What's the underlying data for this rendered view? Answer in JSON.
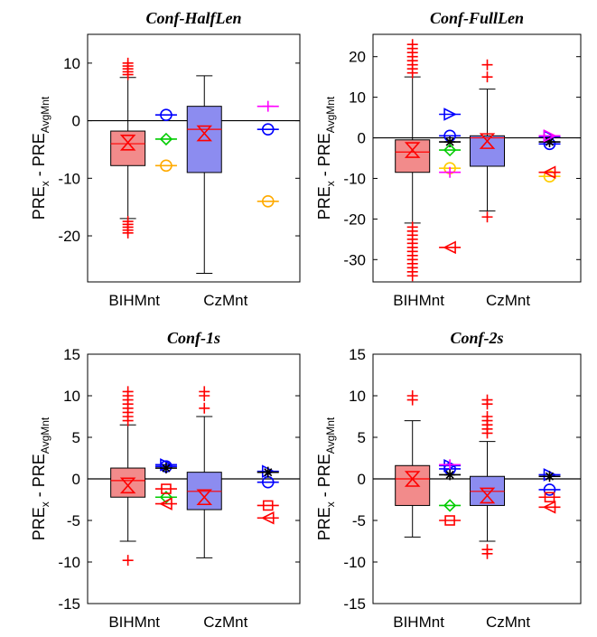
{
  "chart_data": [
    {
      "type": "box",
      "title": "Conf-HalfLen",
      "ylabel": [
        "PRE",
        "x",
        " - PRE",
        "AvgMnt"
      ],
      "categories": [
        "BIHMnt",
        "CzMnt"
      ],
      "ylim": [
        -28,
        15
      ],
      "yticks": [
        -20,
        -10,
        0,
        10
      ],
      "refline": 0,
      "box_colors": [
        "#f28b8b",
        "#8c8cf0"
      ],
      "boxes": [
        {
          "q1": -7.8,
          "median": -4,
          "q3": -1.8,
          "whisker_low": -17,
          "whisker_high": 7.5,
          "mean": -3.8,
          "outliers": [
            8,
            8.5,
            9,
            9.5,
            10,
            -17.5,
            -18,
            -18.5,
            -19,
            -19.5
          ]
        },
        {
          "q1": -9,
          "median": -1.5,
          "q3": 2.5,
          "whisker_low": -26.5,
          "whisker_high": 7.8,
          "mean": -2.2,
          "outliers": []
        }
      ],
      "series": [
        {
          "color": "#0000ff",
          "marker": "circle",
          "values": [
            1,
            -1.5
          ]
        },
        {
          "color": "#00cc00",
          "marker": "diamond",
          "values": [
            -3.2,
            null
          ]
        },
        {
          "color": "#ffaa00",
          "marker": "circle",
          "values": [
            -7.8,
            -14
          ]
        },
        {
          "color": "#ff00ff",
          "marker": "plus",
          "values": [
            null,
            2.5
          ]
        }
      ]
    },
    {
      "type": "box",
      "title": "Conf-FullLen",
      "ylabel": [
        "PRE",
        "x",
        " - PRE",
        "AvgMnt"
      ],
      "categories": [
        "BIHMnt",
        "CzMnt"
      ],
      "ylim": [
        -35.5,
        25.5
      ],
      "yticks": [
        -30,
        -20,
        -10,
        0,
        10,
        20
      ],
      "refline": 0,
      "box_colors": [
        "#f28b8b",
        "#8c8cf0"
      ],
      "boxes": [
        {
          "q1": -8.5,
          "median": -3.5,
          "q3": -0.5,
          "whisker_low": -21,
          "whisker_high": 15,
          "mean": -3,
          "outliers": [
            16,
            17,
            18,
            19,
            20,
            21,
            22,
            23,
            -22,
            -23,
            -24,
            -25,
            -26,
            -27,
            -28,
            -29,
            -30,
            -31,
            -32,
            -33,
            -34
          ]
        },
        {
          "q1": -7,
          "median": 0,
          "q3": 0.5,
          "whisker_low": -18,
          "whisker_high": 12,
          "mean": -0.8,
          "outliers": [
            15,
            18,
            -19.5
          ]
        }
      ],
      "series": [
        {
          "color": "#0000ff",
          "marker": "triangle-right",
          "values": [
            5.8,
            0.3
          ]
        },
        {
          "color": "#0000ff",
          "marker": "circle",
          "values": [
            0.5,
            -1.5
          ]
        },
        {
          "color": "#000000",
          "marker": "star",
          "values": [
            -1,
            -1
          ]
        },
        {
          "color": "#00cc00",
          "marker": "diamond",
          "values": [
            -3,
            null
          ]
        },
        {
          "color": "#ffcc00",
          "marker": "circle",
          "values": [
            -7.5,
            -9.5
          ]
        },
        {
          "color": "#ff00ff",
          "marker": "plus",
          "values": [
            -8.5,
            null
          ]
        },
        {
          "color": "#ff00ff",
          "marker": "triangle-right",
          "values": [
            null,
            0.5
          ]
        },
        {
          "color": "#ff0000",
          "marker": "triangle-left",
          "values": [
            null,
            -8.5
          ]
        },
        {
          "color": "#ff0000",
          "marker": "triangle-left",
          "values": [
            -27,
            null
          ]
        }
      ]
    },
    {
      "type": "box",
      "title": "Conf-1s",
      "ylabel": [
        "PRE",
        "x",
        " - PRE",
        "AvgMnt"
      ],
      "categories": [
        "BIHMnt",
        "CzMnt"
      ],
      "ylim": [
        -15,
        15
      ],
      "yticks": [
        -15,
        -10,
        -5,
        0,
        5,
        10,
        15
      ],
      "refline": 0,
      "box_colors": [
        "#f28b8b",
        "#8c8cf0"
      ],
      "boxes": [
        {
          "q1": -2.2,
          "median": -0.2,
          "q3": 1.3,
          "whisker_low": -7.5,
          "whisker_high": 6.5,
          "mean": -0.8,
          "outliers": [
            7,
            7.5,
            8,
            8.5,
            9,
            9.5,
            10,
            10.5,
            -9.8
          ]
        },
        {
          "q1": -3.7,
          "median": -1.5,
          "q3": 0.8,
          "whisker_low": -9.5,
          "whisker_high": 7.5,
          "mean": -2.2,
          "outliers": [
            8.5,
            10,
            10.5
          ]
        }
      ],
      "series": [
        {
          "color": "#0000ff",
          "marker": "triangle-right",
          "values": [
            1.7,
            0.9
          ]
        },
        {
          "color": "#0000ff",
          "marker": "circle",
          "values": [
            1.5,
            -0.4
          ]
        },
        {
          "color": "#000000",
          "marker": "star",
          "values": [
            1.3,
            0.8
          ]
        },
        {
          "color": "#00cc00",
          "marker": "diamond",
          "values": [
            -2.2,
            null
          ]
        },
        {
          "color": "#ff0000",
          "marker": "square",
          "values": [
            -1.2,
            -3.2
          ]
        },
        {
          "color": "#ff0000",
          "marker": "triangle-left",
          "values": [
            -3,
            -4.7
          ]
        }
      ]
    },
    {
      "type": "box",
      "title": "Conf-2s",
      "ylabel": [
        "PRE",
        "x",
        " - PRE",
        "AvgMnt"
      ],
      "categories": [
        "BIHMnt",
        "CzMnt"
      ],
      "ylim": [
        -15,
        15
      ],
      "yticks": [
        -15,
        -10,
        -5,
        0,
        5,
        10,
        15
      ],
      "refline": 0,
      "box_colors": [
        "#f28b8b",
        "#8c8cf0"
      ],
      "boxes": [
        {
          "q1": -3.2,
          "median": 0,
          "q3": 1.6,
          "whisker_low": -7,
          "whisker_high": 7,
          "mean": 0,
          "outliers": [
            9.5,
            10
          ]
        },
        {
          "q1": -3.2,
          "median": -1.5,
          "q3": 0.3,
          "whisker_low": -7.5,
          "whisker_high": 4.5,
          "mean": -2,
          "outliers": [
            5.5,
            6,
            6.5,
            7,
            7.5,
            9,
            9.5,
            -8.5,
            -9
          ]
        }
      ],
      "series": [
        {
          "color": "#0000ff",
          "marker": "triangle-right",
          "values": [
            1.6,
            0.5
          ]
        },
        {
          "color": "#0000ff",
          "marker": "circle",
          "values": [
            1.2,
            -1.3
          ]
        },
        {
          "color": "#ff00ff",
          "marker": "plus",
          "values": [
            1.7,
            null
          ]
        },
        {
          "color": "#000000",
          "marker": "star",
          "values": [
            0.5,
            0.3
          ]
        },
        {
          "color": "#00cc00",
          "marker": "diamond",
          "values": [
            -3.2,
            null
          ]
        },
        {
          "color": "#ff0000",
          "marker": "square",
          "values": [
            -5,
            -2.2
          ]
        },
        {
          "color": "#ff0000",
          "marker": "triangle-left",
          "values": [
            null,
            -3.4
          ]
        }
      ]
    }
  ]
}
